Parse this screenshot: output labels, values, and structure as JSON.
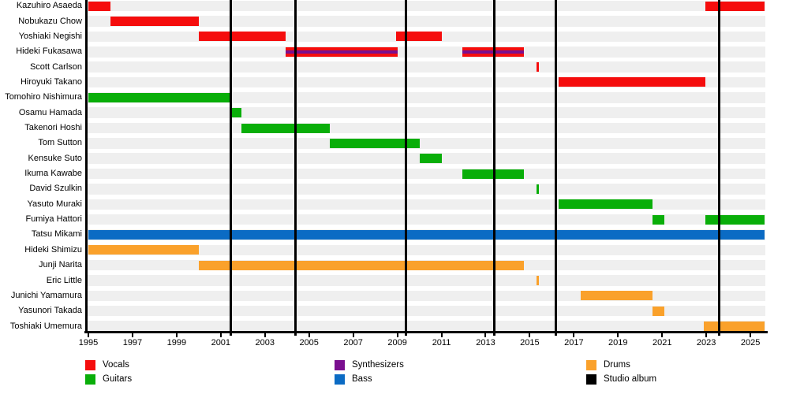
{
  "chart_data": {
    "type": "timeline",
    "title": "",
    "description": "Band-member timeline chart: colored bars show each member's tenure by role; vertical black lines mark studio album releases.",
    "x_axis": {
      "start_year": 1995,
      "end_year": 2025.65,
      "tick_labels": [
        "1995",
        "1997",
        "1999",
        "2001",
        "2003",
        "2005",
        "2007",
        "2009",
        "2011",
        "2013",
        "2015",
        "2017",
        "2019",
        "2021",
        "2023",
        "2025"
      ],
      "label_step_years": 2
    },
    "colors": {
      "vocals": "#f50d0d",
      "guitars": "#09ae09",
      "synthesizers": "#7a0f8f",
      "bass": "#0b6bc4",
      "drums": "#faa12b",
      "studio_album": "#000000",
      "row_band": "#efefef",
      "axis": "#000000"
    },
    "legend": [
      {
        "label": "Vocals",
        "key": "vocals"
      },
      {
        "label": "Guitars",
        "key": "guitars"
      },
      {
        "label": "Synthesizers",
        "key": "synthesizers"
      },
      {
        "label": "Bass",
        "key": "bass"
      },
      {
        "label": "Drums",
        "key": "drums"
      },
      {
        "label": "Studio album",
        "key": "studio_album"
      }
    ],
    "album_release_years": [
      2001.45,
      2004.4,
      2009.4,
      2013.4,
      2016.2,
      2023.6
    ],
    "members": [
      {
        "name": "Kazuhiro Asaeda",
        "segments": [
          {
            "start": 1995.0,
            "end": 1996.0,
            "roles": [
              "vocals"
            ]
          },
          {
            "start": 2022.95,
            "end": 2025.65,
            "roles": [
              "vocals"
            ]
          }
        ]
      },
      {
        "name": "Nobukazu Chow",
        "segments": [
          {
            "start": 1996.0,
            "end": 2000.0,
            "roles": [
              "vocals"
            ]
          }
        ]
      },
      {
        "name": "Yoshiaki Negishi",
        "segments": [
          {
            "start": 2000.0,
            "end": 2003.95,
            "roles": [
              "vocals"
            ]
          },
          {
            "start": 2008.95,
            "end": 2011.0,
            "roles": [
              "vocals"
            ]
          }
        ]
      },
      {
        "name": "Hideki Fukasawa",
        "segments": [
          {
            "start": 2003.95,
            "end": 2009.0,
            "roles": [
              "vocals",
              "synthesizers"
            ]
          },
          {
            "start": 2011.95,
            "end": 2014.75,
            "roles": [
              "vocals",
              "synthesizers"
            ]
          }
        ]
      },
      {
        "name": "Scott Carlson",
        "segments": [
          {
            "start": 2015.3,
            "end": 2015.42,
            "roles": [
              "vocals"
            ]
          }
        ]
      },
      {
        "name": "Hiroyuki Takano",
        "segments": [
          {
            "start": 2016.3,
            "end": 2022.95,
            "roles": [
              "vocals"
            ]
          }
        ]
      },
      {
        "name": "Tomohiro Nishimura",
        "segments": [
          {
            "start": 1995.0,
            "end": 2001.4,
            "roles": [
              "guitars"
            ]
          }
        ]
      },
      {
        "name": "Osamu Hamada",
        "segments": [
          {
            "start": 2001.4,
            "end": 2001.95,
            "roles": [
              "guitars"
            ]
          }
        ]
      },
      {
        "name": "Takenori Hoshi",
        "segments": [
          {
            "start": 2001.95,
            "end": 2005.95,
            "roles": [
              "guitars"
            ]
          }
        ]
      },
      {
        "name": "Tom Sutton",
        "segments": [
          {
            "start": 2005.95,
            "end": 2010.0,
            "roles": [
              "guitars"
            ]
          }
        ]
      },
      {
        "name": "Kensuke Suto",
        "segments": [
          {
            "start": 2010.0,
            "end": 2011.0,
            "roles": [
              "guitars"
            ]
          }
        ]
      },
      {
        "name": "Ikuma Kawabe",
        "segments": [
          {
            "start": 2011.95,
            "end": 2014.75,
            "roles": [
              "guitars"
            ]
          }
        ]
      },
      {
        "name": "David Szulkin",
        "segments": [
          {
            "start": 2015.3,
            "end": 2015.42,
            "roles": [
              "guitars"
            ]
          }
        ]
      },
      {
        "name": "Yasuto Muraki",
        "segments": [
          {
            "start": 2016.3,
            "end": 2020.55,
            "roles": [
              "guitars"
            ]
          }
        ]
      },
      {
        "name": "Fumiya Hattori",
        "segments": [
          {
            "start": 2020.55,
            "end": 2021.1,
            "roles": [
              "guitars"
            ]
          },
          {
            "start": 2022.95,
            "end": 2025.65,
            "roles": [
              "guitars"
            ]
          }
        ]
      },
      {
        "name": "Tatsu Mikami",
        "segments": [
          {
            "start": 1995.0,
            "end": 2025.65,
            "roles": [
              "bass"
            ]
          }
        ]
      },
      {
        "name": "Hideki Shimizu",
        "segments": [
          {
            "start": 1995.0,
            "end": 2000.0,
            "roles": [
              "drums"
            ]
          }
        ]
      },
      {
        "name": "Junji Narita",
        "segments": [
          {
            "start": 2000.0,
            "end": 2014.75,
            "roles": [
              "drums"
            ]
          }
        ]
      },
      {
        "name": "Eric Little",
        "segments": [
          {
            "start": 2015.3,
            "end": 2015.42,
            "roles": [
              "drums"
            ]
          }
        ]
      },
      {
        "name": "Junichi Yamamura",
        "segments": [
          {
            "start": 2017.3,
            "end": 2020.55,
            "roles": [
              "drums"
            ]
          }
        ]
      },
      {
        "name": "Yasunori Takada",
        "segments": [
          {
            "start": 2020.55,
            "end": 2021.1,
            "roles": [
              "drums"
            ]
          }
        ]
      },
      {
        "name": "Toshiaki Umemura",
        "segments": [
          {
            "start": 2022.9,
            "end": 2025.65,
            "roles": [
              "drums"
            ]
          }
        ]
      }
    ]
  }
}
